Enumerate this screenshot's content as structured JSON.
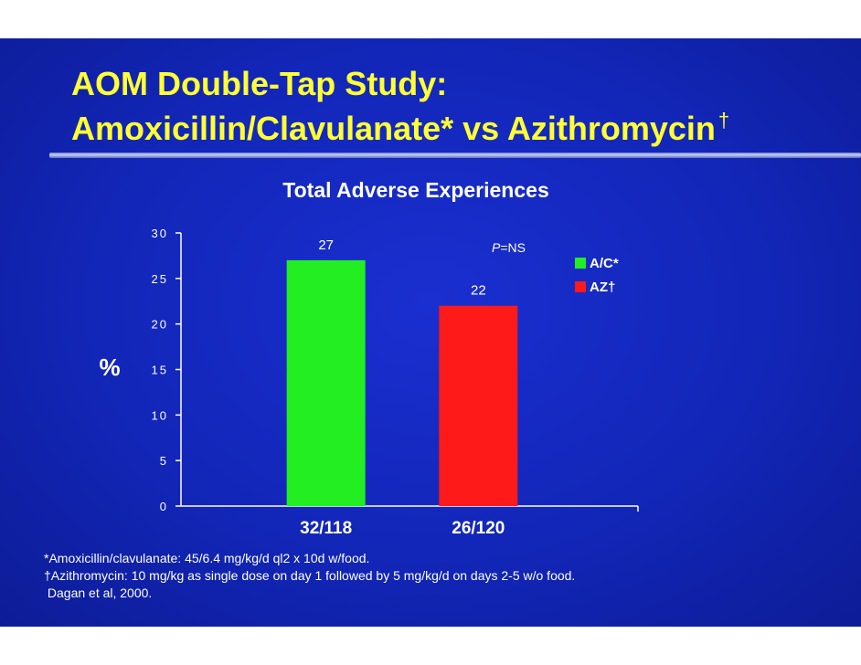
{
  "slide": {
    "title_line1": "AOM Double-Tap Study:",
    "title_line2": "Amoxicillin/Clavulanate* vs Azithromycin",
    "title_dagger": "†"
  },
  "chart_data": {
    "type": "bar",
    "title": "Total Adverse Experiences",
    "ylabel": "%",
    "ylim": [
      0,
      30
    ],
    "yticks": [
      0,
      5,
      10,
      15,
      20,
      25,
      30
    ],
    "categories": [
      "32/118",
      "26/120"
    ],
    "values": [
      27,
      22
    ],
    "data_labels": [
      "27",
      "22"
    ],
    "bar_colors": [
      "#22ee22",
      "#ff1a1a"
    ],
    "legend": [
      {
        "label": "A/C*",
        "color": "#22ee22"
      },
      {
        "label": "AZ†",
        "color": "#ff1a1a"
      }
    ],
    "legend_placement": "top-right",
    "annotation": {
      "p_italic": "P",
      "p_rest": "=NS"
    },
    "grid": false
  },
  "footnotes": [
    "*Amoxicillin/clavulanate: 45/6.4 mg/kg/d ql2 x 10d w/food.",
    "†Azithromycin: 10 mg/kg as single dose on day 1 followed by 5 mg/kg/d on days 2-5 w/o food.",
    " Dagan et al, 2000."
  ]
}
